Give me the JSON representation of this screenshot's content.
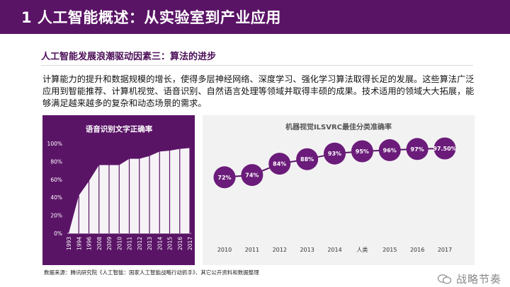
{
  "header": {
    "title": "1 人工智能概述：从实验室到产业应用"
  },
  "subtitle": "人工智能发展浪潮驱动因素三：算法的进步",
  "body_text": "计算能力的提升和数据规模的增长，使得多层神经网络、深度学习、强化学习算法取得长足的发展。这些算法广泛应用到智能推荐、计算机视觉、语音识别、自然语言处理等领域并取得丰硕的成果。技术适用的领域大大拓展，能够满足越来越多的复杂和动态场景的需求。",
  "source": "数据来源：腾讯研究院《人工智能：国家人工智能战略行动抓手》、其它公开资料和数据整理",
  "watermark": {
    "text": "战略节奏"
  },
  "colors": {
    "brand": "#5a1466",
    "panel_bg": "#f2f2f2",
    "marker": "#6b1b7a",
    "area": "#ffffff"
  },
  "chart_data": [
    {
      "type": "area",
      "title": "语音识别文字正确率",
      "categories": [
        "1993",
        "1994",
        "1996",
        "2008",
        "2009",
        "2010",
        "2011",
        "2012",
        "2013",
        "2014",
        "2015",
        "2016",
        "2017"
      ],
      "values": [
        0,
        42,
        58,
        76,
        76,
        76,
        83,
        83,
        86,
        91,
        92,
        94,
        95
      ],
      "y_ticks": [
        "0%",
        "20%",
        "40%",
        "60%",
        "80%",
        "100%"
      ],
      "ylim": [
        0,
        100
      ],
      "xlabel": "",
      "ylabel": ""
    },
    {
      "type": "line",
      "title": "机器视觉ILSVRC最佳分类准确率",
      "categories": [
        "2010",
        "2011",
        "2012",
        "2013",
        "2014",
        "人类",
        "2015",
        "2016",
        "2017"
      ],
      "values": [
        72,
        74,
        84,
        88,
        93,
        95,
        96,
        97,
        97.5
      ],
      "labels": [
        "72%",
        "74%",
        "84%",
        "88%",
        "93%",
        "95%",
        "96%",
        "97%",
        "97.50%"
      ],
      "ylim": [
        65,
        100
      ],
      "xlabel": "",
      "ylabel": ""
    }
  ]
}
